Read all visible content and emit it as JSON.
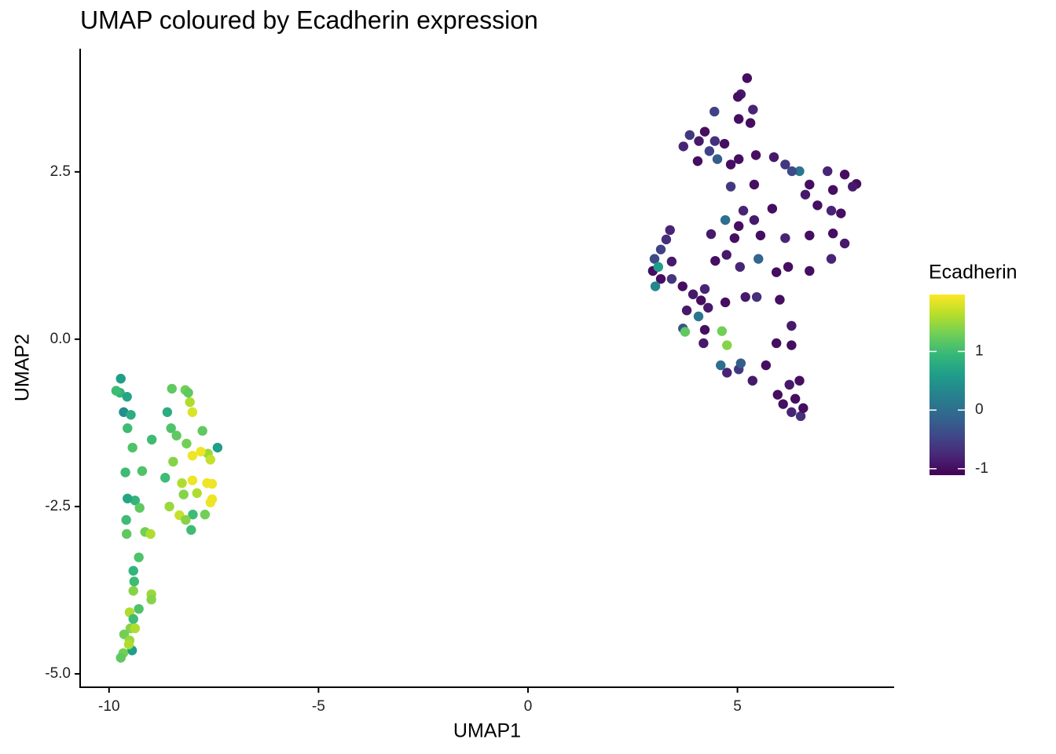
{
  "chart_data": {
    "type": "scatter",
    "title": "UMAP coloured by Ecadherin expression",
    "x_label": "UMAP1",
    "y_label": "UMAP2",
    "color_label": "Ecadherin",
    "xlim": [
      -10.69,
      8.74
    ],
    "xticks": [
      -10,
      -5,
      0,
      5
    ],
    "ylim": [
      -5.2,
      4.34
    ],
    "yticks": [
      {
        "value": -5,
        "label": "-5.0"
      },
      {
        "value": -2.5,
        "label": "-2.5"
      },
      {
        "value": 0,
        "label": "0.0"
      },
      {
        "value": 2.5,
        "label": "2.5"
      }
    ],
    "colorlim": [
      -1.11,
      1.97
    ],
    "colorticks": [
      -1,
      0,
      1
    ],
    "colormap": [
      "#440154",
      "#482878",
      "#3e4989",
      "#31688e",
      "#26828e",
      "#1f9e89",
      "#35b779",
      "#6ece58",
      "#b5de2b",
      "#fde725"
    ],
    "x": [
      -9.72,
      -9.74,
      -9.57,
      -9.65,
      -9.48,
      -9.56,
      -9.44,
      -8.98,
      -8.5,
      -8.18,
      -8.07,
      -8.01,
      -8.61,
      -8.52,
      -8.39,
      -8.15,
      -7.77,
      -7.64,
      -7.41,
      -7.81,
      -7.58,
      -8.47,
      -8.66,
      -9.21,
      -9.61,
      -8.26,
      -8.01,
      -7.66,
      -7.54,
      -8.22,
      -7.9,
      -7.58,
      -7.54,
      -8.56,
      -8.32,
      -8.0,
      -7.71,
      -8.04,
      -8.17,
      -9.38,
      -9.56,
      -9.27,
      -9.59,
      -9.58,
      -9.14,
      -9.01,
      -9.29,
      -9.42,
      -9.4,
      -9.42,
      -8.99,
      -8.99,
      -9.29,
      -9.51,
      -9.42,
      -9.49,
      -9.38,
      -9.64,
      -9.51,
      -9.45,
      -9.66,
      -9.72,
      -9.53,
      -9.83,
      -8.01,
      -8.11,
      5.23,
      5.08,
      5.01,
      5.37,
      4.45,
      5.03,
      5.31,
      3.71,
      3.86,
      4.08,
      4.22,
      4.46,
      4.33,
      4.69,
      4.52,
      4.05,
      4.84,
      5.03,
      5.44,
      5.87,
      6.14,
      6.48,
      6.3,
      7.15,
      7.56,
      7.84,
      7.75,
      7.28,
      6.72,
      6.91,
      7.47,
      7.24,
      6.62,
      5.83,
      4.71,
      5.03,
      5.4,
      5.4,
      4.84,
      5.14,
      4.37,
      4.93,
      5.55,
      6.14,
      6.72,
      7.28,
      7.56,
      7.24,
      6.72,
      6.21,
      5.93,
      5.5,
      5.06,
      4.74,
      4.47,
      3.39,
      3.3,
      3.17,
      3.02,
      2.98,
      3.11,
      3.43,
      3.17,
      3.43,
      3.04,
      3.69,
      3.94,
      4.22,
      4.13,
      3.79,
      4.07,
      3.7,
      3.75,
      4.22,
      4.71,
      5.19,
      5.46,
      6.01,
      4.63,
      4.75,
      4.19,
      4.6,
      4.75,
      5.03,
      5.08,
      5.36,
      5.68,
      5.93,
      6.29,
      6.29,
      5.96,
      6.09,
      6.24,
      6.48,
      6.29,
      6.51,
      6.57,
      6.38,
      4.3
    ],
    "y": [
      -0.59,
      -0.8,
      -0.86,
      -1.09,
      -1.13,
      -1.33,
      -1.62,
      -1.5,
      -0.74,
      -0.76,
      -0.94,
      -1.09,
      -1.09,
      -1.33,
      -1.44,
      -1.56,
      -1.37,
      -1.71,
      -1.62,
      -1.68,
      -1.8,
      -1.83,
      -2.07,
      -1.97,
      -1.99,
      -2.15,
      -2.11,
      -2.15,
      -2.16,
      -2.32,
      -2.3,
      -2.44,
      -2.39,
      -2.5,
      -2.63,
      -2.62,
      -2.62,
      -2.85,
      -2.7,
      -2.41,
      -2.38,
      -2.52,
      -2.7,
      -2.91,
      -2.88,
      -2.91,
      -3.26,
      -3.46,
      -3.62,
      -3.76,
      -3.81,
      -3.89,
      -4.03,
      -4.08,
      -4.18,
      -4.32,
      -4.32,
      -4.41,
      -4.5,
      -4.65,
      -4.69,
      -4.76,
      -4.56,
      -0.77,
      -1.74,
      -0.8,
      3.9,
      3.66,
      3.62,
      3.43,
      3.4,
      3.29,
      3.23,
      2.88,
      3.05,
      2.96,
      3.1,
      2.96,
      2.81,
      2.92,
      2.69,
      2.66,
      2.61,
      2.69,
      2.75,
      2.72,
      2.61,
      2.51,
      2.51,
      2.51,
      2.46,
      2.32,
      2.28,
      2.23,
      2.31,
      2.0,
      1.88,
      1.92,
      2.16,
      1.95,
      1.78,
      1.69,
      1.78,
      2.31,
      2.28,
      1.92,
      1.57,
      1.51,
      1.55,
      1.51,
      1.55,
      1.58,
      1.43,
      1.2,
      1.02,
      1.08,
      1.0,
      1.2,
      1.08,
      1.26,
      1.17,
      1.63,
      1.49,
      1.34,
      1.2,
      1.02,
      1.08,
      1.16,
      0.9,
      0.9,
      0.79,
      0.79,
      0.67,
      0.75,
      0.58,
      0.43,
      0.34,
      0.16,
      0.11,
      0.14,
      0.55,
      0.63,
      0.63,
      0.59,
      0.12,
      -0.09,
      -0.06,
      -0.39,
      -0.5,
      -0.45,
      -0.36,
      -0.62,
      -0.39,
      -0.06,
      0.2,
      -0.09,
      -0.83,
      -0.97,
      -0.68,
      -0.62,
      -1.09,
      -1.15,
      -1.03,
      -0.89,
      0.47
    ],
    "color_values": [
      0.6,
      0.9,
      0.7,
      0.4,
      0.8,
      1.0,
      1.1,
      1.0,
      1.2,
      1.3,
      1.6,
      1.8,
      0.8,
      1.1,
      1.2,
      1.3,
      1.2,
      1.5,
      0.6,
      1.9,
      1.7,
      1.4,
      1.0,
      1.1,
      1.0,
      1.6,
      1.9,
      1.9,
      1.9,
      1.4,
      1.6,
      1.9,
      1.9,
      1.5,
      1.7,
      1.0,
      1.3,
      1.0,
      1.4,
      0.9,
      0.7,
      1.2,
      1.0,
      1.2,
      1.3,
      1.6,
      1.1,
      0.9,
      1.0,
      1.4,
      1.5,
      1.4,
      1.1,
      1.6,
      1.0,
      1.4,
      1.6,
      1.3,
      1.5,
      0.6,
      1.3,
      1.2,
      1.6,
      1.0,
      1.9,
      1.2,
      -1.0,
      -0.9,
      -1.0,
      -0.8,
      -0.5,
      -1.0,
      -1.0,
      -0.8,
      -0.6,
      -0.9,
      -1.0,
      -0.7,
      -0.5,
      -1.0,
      -0.2,
      -1.0,
      -1.0,
      -1.0,
      -1.0,
      -0.9,
      -0.6,
      0.1,
      -0.4,
      -0.8,
      -1.0,
      -1.0,
      -0.9,
      -1.0,
      -1.0,
      -1.0,
      -1.0,
      -0.8,
      -0.9,
      -1.0,
      0.0,
      -1.0,
      -0.9,
      -1.0,
      -0.6,
      -0.8,
      -0.9,
      -1.0,
      -1.0,
      -0.8,
      -1.0,
      -1.0,
      -0.9,
      -0.8,
      -1.0,
      -1.0,
      -1.0,
      -0.1,
      -0.8,
      -0.9,
      -1.0,
      -0.8,
      -0.7,
      -0.5,
      -0.4,
      -1.0,
      0.6,
      -0.9,
      -1.0,
      -0.6,
      0.3,
      -1.0,
      -0.9,
      -0.8,
      -1.0,
      -0.9,
      0.1,
      -0.3,
      1.2,
      -1.0,
      -1.0,
      -0.9,
      -0.7,
      -1.0,
      1.3,
      1.4,
      -0.9,
      0.0,
      -0.8,
      -0.6,
      -0.2,
      -0.9,
      -1.0,
      -1.0,
      -0.9,
      -1.0,
      -1.0,
      -1.0,
      -0.9,
      -1.0,
      -0.8,
      -0.7,
      -1.0,
      -1.0,
      -0.9
    ]
  }
}
